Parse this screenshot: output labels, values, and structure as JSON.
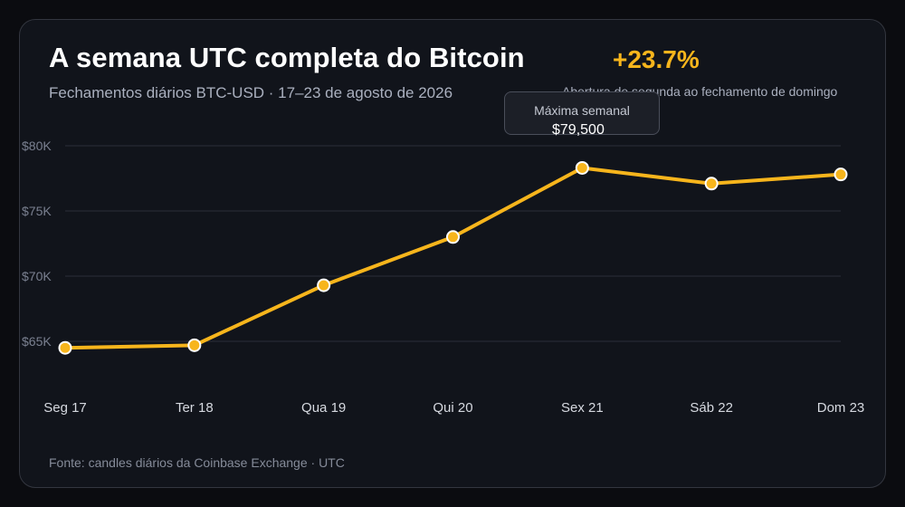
{
  "chart_data": {
    "type": "line",
    "title": "A semana UTC completa do Bitcoin",
    "subtitle": "Fechamentos diários BTC-USD · 17–23 de agosto de 2026",
    "categories": [
      "Seg 17",
      "Ter 18",
      "Qua 19",
      "Qui 20",
      "Sex 21",
      "Sáb 22",
      "Dom 23"
    ],
    "series": [
      {
        "values": [
          64500,
          64700,
          69300,
          73000,
          78300,
          77100,
          77800
        ]
      }
    ],
    "ylim": [
      62500,
      80000
    ],
    "yticks": [
      65000,
      70000,
      75000,
      80000
    ],
    "ytick_labels": [
      "$65K",
      "$70K",
      "$75K",
      "$80K"
    ],
    "grid": true,
    "line_color": "#f7b51c",
    "annotation": {
      "label": "Máxima semanal",
      "value": "$79,500"
    },
    "stat": {
      "value": "+23.7%",
      "label": "Abertura de segunda ao fechamento de domingo"
    },
    "source": "Fonte: candles diários da Coinbase Exchange · UTC"
  }
}
